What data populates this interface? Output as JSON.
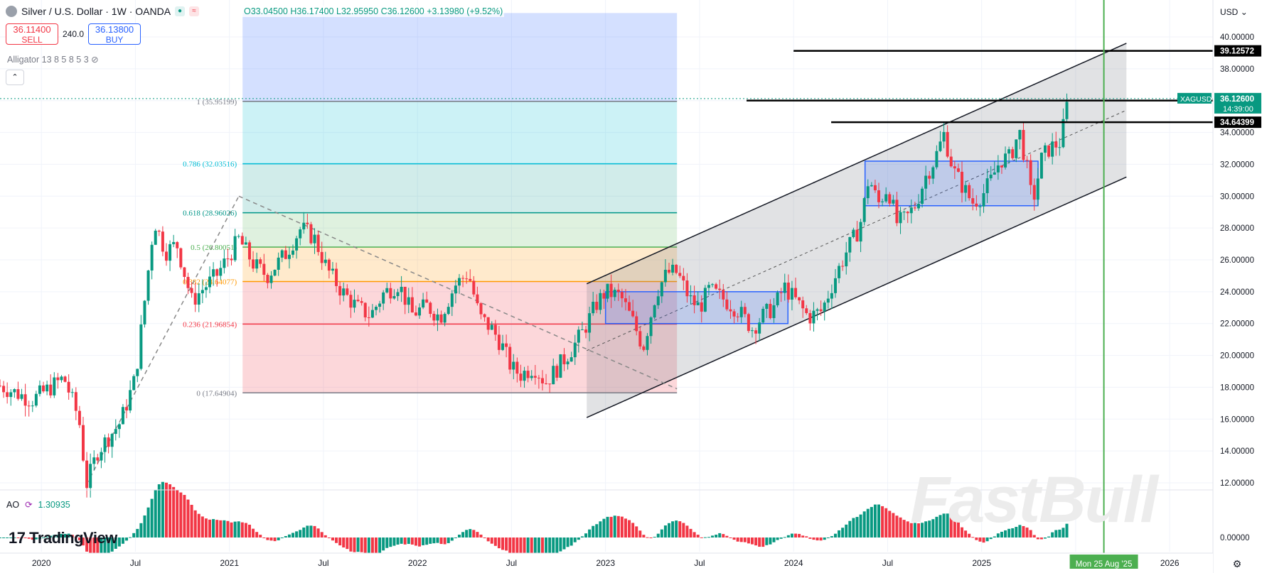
{
  "header": {
    "symbol_title": "Silver / U.S. Dollar · 1W · OANDA",
    "open": "O33.04500",
    "high": "H36.17400",
    "low": "L32.95950",
    "close": "C36.12600",
    "change": "+3.13980 (+9.52%)",
    "sell_price": "36.11400",
    "sell_label": "SELL",
    "spread": "240.0",
    "buy_price": "36.13800",
    "buy_label": "BUY",
    "indicator": "Alligator 13 8 5 8 5 3",
    "currency": "USD"
  },
  "ao": {
    "label": "AO",
    "value": "1.30935"
  },
  "brand": {
    "logo_text": "TradingView",
    "watermark": "FastBull"
  },
  "colors": {
    "up": "#089981",
    "down": "#f23645",
    "grid": "#f0f3fa",
    "accent": "#2962ff",
    "vline": "#4caf50"
  },
  "chart_data": {
    "type": "candlestick",
    "title": "Silver / U.S. Dollar · 1W · OANDA",
    "ylim": [
      11,
      41.5
    ],
    "y_ticks": [
      "12.00000",
      "14.00000",
      "16.00000",
      "18.00000",
      "20.00000",
      "22.00000",
      "24.00000",
      "26.00000",
      "28.00000",
      "30.00000",
      "32.00000",
      "34.00000",
      "36.00000",
      "38.00000",
      "40.00000"
    ],
    "ao_tick": "0.00000",
    "x_ticks": [
      {
        "label": "2020",
        "x": 2020.0
      },
      {
        "label": "Jul",
        "x": 2020.5
      },
      {
        "label": "2021",
        "x": 2021.0
      },
      {
        "label": "Jul",
        "x": 2021.5
      },
      {
        "label": "2022",
        "x": 2022.0
      },
      {
        "label": "Jul",
        "x": 2022.5
      },
      {
        "label": "2023",
        "x": 2023.0
      },
      {
        "label": "Jul",
        "x": 2023.5
      },
      {
        "label": "2024",
        "x": 2024.0
      },
      {
        "label": "Jul",
        "x": 2024.5
      },
      {
        "label": "2025",
        "x": 2025.0
      },
      {
        "label": "Jul",
        "x": 2025.5
      },
      {
        "label": "2026",
        "x": 2026.0
      }
    ],
    "xlim": [
      2019.78,
      2026.23
    ],
    "cursor": {
      "label": "Mon 25 Aug '25",
      "x": 2025.65
    },
    "fib_levels": [
      {
        "label": "1 (35.95199)",
        "value": 35.95199,
        "color": "#787b86",
        "fill": "rgba(120,123,134,0.20)"
      },
      {
        "label": "0.786 (32.03516)",
        "value": 32.03516,
        "color": "#00bcd4",
        "fill": "rgba(0,188,212,0.20)"
      },
      {
        "label": "0.618 (28.96026)",
        "value": 28.96026,
        "color": "#009688",
        "fill": "rgba(0,150,136,0.18)"
      },
      {
        "label": "0.5 (26.80051)",
        "value": 26.80051,
        "color": "#4caf50",
        "fill": "rgba(76,175,80,0.18)"
      },
      {
        "label": "0.382 (24.64077)",
        "value": 24.64077,
        "color": "#ff9800",
        "fill": "rgba(255,152,0,0.20)"
      },
      {
        "label": "0.236 (21.96854)",
        "value": 21.96854,
        "color": "#f23645",
        "fill": "rgba(242,54,69,0.20)"
      },
      {
        "label": "0 (17.64904)",
        "value": 17.64904,
        "color": "#787b86",
        "fill": null
      }
    ],
    "fib_x": [
      2021.07,
      2023.38
    ],
    "fib_top_fill": {
      "from": 35.95199,
      "to": 41.5,
      "fill": "rgba(41,98,255,0.20)"
    },
    "channel": {
      "x0": 2022.9,
      "x1": 2025.77,
      "upper0": 24.5,
      "upper1": 39.6,
      "lower0": 16.1,
      "lower1": 31.2
    },
    "boxes": [
      {
        "x0": 2023.0,
        "x1": 2023.97,
        "y0": 22.0,
        "y1": 24.0
      },
      {
        "x0": 2024.38,
        "x1": 2025.3,
        "y0": 29.4,
        "y1": 32.2
      }
    ],
    "resistance": [
      {
        "label": "39.12572",
        "value": 39.12572,
        "x0": 2024.0
      },
      {
        "label": "36.00662",
        "value": 36.00662,
        "x0": 2023.75
      },
      {
        "label": "34.64399",
        "value": 34.64399,
        "x0": 2024.2
      }
    ],
    "price_tag": {
      "symbol": "XAGUSD",
      "value": "36.12600",
      "countdown": "14:39:00",
      "y": 36.126
    },
    "price_path": [
      [
        2019.78,
        18.1
      ],
      [
        2019.95,
        17.2
      ],
      [
        2020.05,
        18.0
      ],
      [
        2020.12,
        18.6
      ],
      [
        2020.2,
        16.0
      ],
      [
        2020.24,
        11.9
      ],
      [
        2020.3,
        14.0
      ],
      [
        2020.42,
        15.8
      ],
      [
        2020.5,
        18.6
      ],
      [
        2020.56,
        24.5
      ],
      [
        2020.6,
        28.5
      ],
      [
        2020.66,
        26.5
      ],
      [
        2020.72,
        27.0
      ],
      [
        2020.8,
        23.4
      ],
      [
        2020.86,
        24.2
      ],
      [
        2020.93,
        25.0
      ],
      [
        2021.0,
        26.3
      ],
      [
        2021.05,
        27.3
      ],
      [
        2021.13,
        25.7
      ],
      [
        2021.2,
        25.0
      ],
      [
        2021.3,
        26.4
      ],
      [
        2021.38,
        28.0
      ],
      [
        2021.45,
        27.4
      ],
      [
        2021.52,
        25.4
      ],
      [
        2021.6,
        24.0
      ],
      [
        2021.68,
        23.0
      ],
      [
        2021.75,
        22.5
      ],
      [
        2021.82,
        23.9
      ],
      [
        2021.9,
        24.5
      ],
      [
        2021.97,
        22.6
      ],
      [
        2022.05,
        23.1
      ],
      [
        2022.12,
        22.4
      ],
      [
        2022.2,
        24.4
      ],
      [
        2022.27,
        25.2
      ],
      [
        2022.33,
        22.4
      ],
      [
        2022.4,
        21.6
      ],
      [
        2022.45,
        20.6
      ],
      [
        2022.5,
        19.2
      ],
      [
        2022.55,
        18.8
      ],
      [
        2022.62,
        19.3
      ],
      [
        2022.68,
        18.3
      ],
      [
        2022.75,
        19.3
      ],
      [
        2022.82,
        20.4
      ],
      [
        2022.88,
        21.5
      ],
      [
        2022.95,
        23.2
      ],
      [
        2023.0,
        24.0
      ],
      [
        2023.08,
        23.7
      ],
      [
        2023.15,
        22.0
      ],
      [
        2023.2,
        20.5
      ],
      [
        2023.27,
        24.0
      ],
      [
        2023.33,
        25.2
      ],
      [
        2023.38,
        25.2
      ],
      [
        2023.45,
        23.5
      ],
      [
        2023.5,
        23.0
      ],
      [
        2023.55,
        24.1
      ],
      [
        2023.62,
        23.6
      ],
      [
        2023.7,
        22.9
      ],
      [
        2023.78,
        21.7
      ],
      [
        2023.83,
        22.4
      ],
      [
        2023.9,
        23.1
      ],
      [
        2023.95,
        24.3
      ],
      [
        2024.0,
        23.6
      ],
      [
        2024.08,
        22.4
      ],
      [
        2024.15,
        22.8
      ],
      [
        2024.22,
        24.9
      ],
      [
        2024.28,
        26.5
      ],
      [
        2024.35,
        28.0
      ],
      [
        2024.38,
        29.8
      ],
      [
        2024.4,
        31.2
      ],
      [
        2024.45,
        29.5
      ],
      [
        2024.5,
        30.6
      ],
      [
        2024.55,
        28.3
      ],
      [
        2024.6,
        28.6
      ],
      [
        2024.65,
        29.5
      ],
      [
        2024.7,
        31.2
      ],
      [
        2024.75,
        32.3
      ],
      [
        2024.8,
        33.9
      ],
      [
        2024.85,
        31.6
      ],
      [
        2024.9,
        30.6
      ],
      [
        2024.95,
        29.6
      ],
      [
        2025.0,
        30.0
      ],
      [
        2025.05,
        31.0
      ],
      [
        2025.1,
        32.3
      ],
      [
        2025.15,
        32.4
      ],
      [
        2025.2,
        34.1
      ],
      [
        2025.24,
        31.8
      ],
      [
        2025.27,
        29.5
      ],
      [
        2025.32,
        32.4
      ],
      [
        2025.36,
        33.0
      ],
      [
        2025.42,
        33.4
      ],
      [
        2025.46,
        36.1
      ]
    ]
  }
}
